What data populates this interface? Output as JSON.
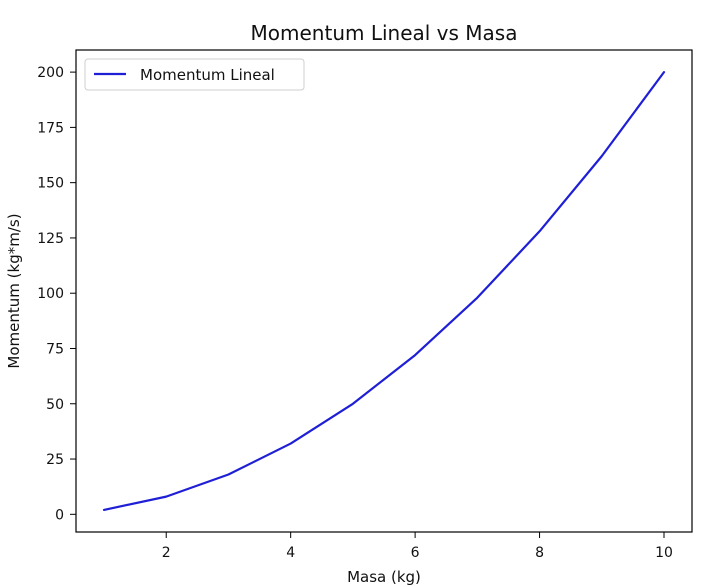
{
  "chart_data": {
    "type": "line",
    "title": "Momentum Lineal vs Masa",
    "xlabel": "Masa (kg)",
    "ylabel": "Momentum (kg*m/s)",
    "x": [
      1,
      2,
      3,
      4,
      5,
      6,
      7,
      8,
      9,
      10
    ],
    "series": [
      {
        "name": "Momentum Lineal",
        "values": [
          2,
          8,
          18,
          32,
          50,
          72,
          98,
          128,
          162,
          200
        ],
        "color": "#1f1fd6"
      }
    ],
    "xlim": [
      0.55,
      10.45
    ],
    "ylim": [
      -8,
      210
    ],
    "xticks": [
      2,
      4,
      6,
      8,
      10
    ],
    "yticks": [
      0,
      25,
      50,
      75,
      100,
      125,
      150,
      175,
      200
    ],
    "grid": false,
    "legend_position": "top-left"
  }
}
